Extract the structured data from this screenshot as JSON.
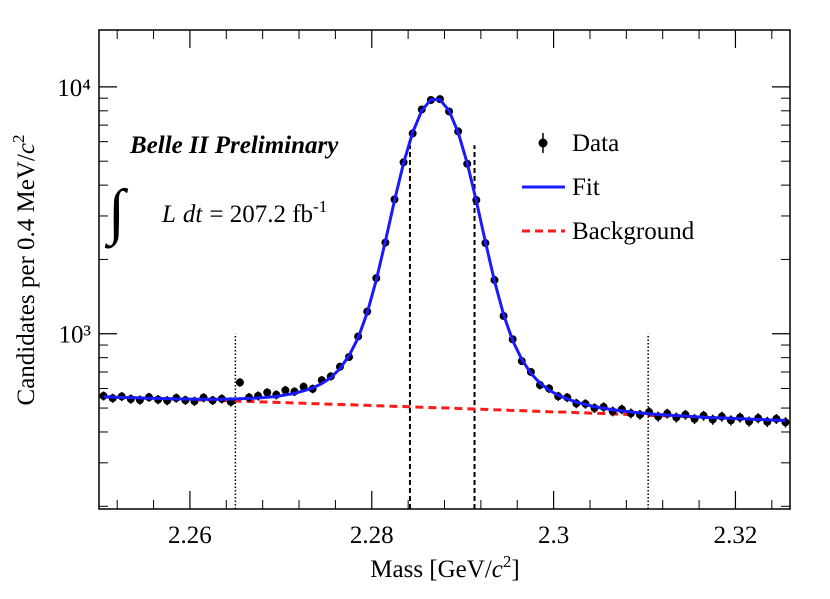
{
  "chart_data": {
    "type": "scatter",
    "xlabel": [
      "Mass [GeV/",
      "c",
      "2",
      "]"
    ],
    "ylabel": [
      "Candidates per 0.4 MeV/",
      "c",
      "2"
    ],
    "annotation": "Belle II Preliminary",
    "lumi": {
      "integral": "∫",
      "parts": [
        "L",
        "dt",
        "= 207.2 fb"
      ],
      "sup": "-1"
    },
    "xlim": [
      2.25,
      2.326
    ],
    "ylim": [
      195,
      17000
    ],
    "log_y": true,
    "xticks": [
      2.26,
      2.28,
      2.3,
      2.32
    ],
    "xminorticks": [
      2.252,
      2.256,
      2.264,
      2.268,
      2.272,
      2.276,
      2.284,
      2.288,
      2.292,
      2.296,
      2.304,
      2.308,
      2.312,
      2.316,
      2.324
    ],
    "yticks": [
      {
        "value": 1000,
        "label": "10³"
      },
      {
        "value": 10000,
        "label": "10⁴"
      }
    ],
    "yminorticks": [
      200,
      300,
      400,
      500,
      600,
      700,
      800,
      900,
      2000,
      3000,
      4000,
      5000,
      6000,
      7000,
      8000,
      9000
    ],
    "legend": "upper right",
    "x": [
      2.2505,
      2.2515,
      2.2525,
      2.2535,
      2.2545,
      2.2555,
      2.2565,
      2.2575,
      2.2585,
      2.2595,
      2.2605,
      2.2615,
      2.2625,
      2.2635,
      2.2645,
      2.2655,
      2.2665,
      2.2675,
      2.2685,
      2.2695,
      2.2705,
      2.2715,
      2.2725,
      2.2735,
      2.2745,
      2.2755,
      2.2765,
      2.2775,
      2.2785,
      2.2795,
      2.2805,
      2.2815,
      2.2825,
      2.2835,
      2.2845,
      2.2855,
      2.2865,
      2.2875,
      2.2885,
      2.2895,
      2.2905,
      2.2915,
      2.2925,
      2.2935,
      2.2945,
      2.2955,
      2.2965,
      2.2975,
      2.2985,
      2.2995,
      2.3005,
      2.3015,
      2.3025,
      2.3035,
      2.3045,
      2.3055,
      2.3065,
      2.3075,
      2.3085,
      2.3095,
      2.3105,
      2.3115,
      2.3125,
      2.3135,
      2.3145,
      2.3155,
      2.3165,
      2.3175,
      2.3185,
      2.3195,
      2.3205,
      2.3215,
      2.3225,
      2.3235,
      2.3245,
      2.3255
    ],
    "series": [
      {
        "name": "Data",
        "style": "points",
        "color": "#000000",
        "values": [
          560,
          548,
          557,
          544,
          539,
          553,
          541,
          536,
          549,
          538,
          533,
          551,
          537,
          545,
          530,
          635,
          552,
          560,
          578,
          566,
          590,
          583,
          610,
          598,
          648,
          672,
          735,
          805,
          975,
          1230,
          1680,
          2340,
          3500,
          4950,
          6480,
          8100,
          8850,
          8920,
          7950,
          6600,
          4880,
          3480,
          2330,
          1650,
          1180,
          950,
          775,
          700,
          620,
          600,
          558,
          552,
          522,
          520,
          500,
          505,
          485,
          494,
          476,
          470,
          482,
          462,
          475,
          458,
          470,
          452,
          466,
          449,
          462,
          446,
          458,
          441,
          455,
          440,
          452,
          438
        ]
      },
      {
        "name": "Fit",
        "style": "solid",
        "color": "#1a1aff",
        "values": [
          555,
          554,
          552,
          551,
          549,
          548,
          547,
          546,
          544,
          544,
          543,
          543,
          542,
          543,
          544,
          545,
          547,
          549,
          553,
          557,
          565,
          573,
          587,
          603,
          628,
          664,
          722,
          815,
          962,
          1216,
          1652,
          2373,
          3464,
          4915,
          6546,
          8011,
          8884,
          8883,
          8007,
          6539,
          4905,
          3451,
          2357,
          1633,
          1194,
          937,
          787,
          691,
          631,
          591,
          564,
          545,
          528,
          517,
          506,
          499,
          492,
          487,
          482,
          478,
          474,
          471,
          468,
          466,
          464,
          461,
          459,
          457,
          456,
          454,
          453,
          451,
          450,
          448,
          447,
          445
        ]
      },
      {
        "name": "Background",
        "style": "dashed",
        "color": "#ff1a1a",
        "values": [
          555,
          554,
          552,
          551,
          549,
          548,
          546,
          545,
          543,
          542,
          540,
          539,
          537,
          536,
          535,
          533,
          532,
          530,
          529,
          527,
          526,
          524,
          523,
          521,
          520,
          518,
          517,
          516,
          514,
          513,
          511,
          510,
          508,
          507,
          505,
          504,
          502,
          501,
          500,
          498,
          497,
          495,
          494,
          492,
          491,
          489,
          488,
          486,
          485,
          483,
          482,
          481,
          479,
          478,
          476,
          475,
          473,
          472,
          470,
          469,
          467,
          466,
          464,
          463,
          462,
          460,
          459,
          457,
          456,
          454,
          453,
          451,
          450,
          448,
          447,
          445
        ]
      }
    ],
    "vlines": [
      {
        "x": 2.265,
        "top": 1000,
        "style": "dotted"
      },
      {
        "x": 2.2842,
        "top": 5800,
        "style": "dashed"
      },
      {
        "x": 2.2913,
        "top": 5800,
        "style": "dashed"
      },
      {
        "x": 2.3104,
        "top": 1000,
        "style": "dotted"
      }
    ]
  }
}
